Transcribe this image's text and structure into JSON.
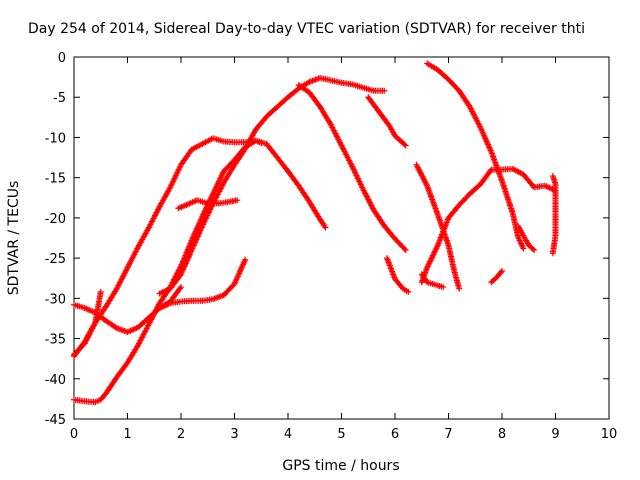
{
  "chart_data": {
    "type": "scatter",
    "title": "Day 254 of 2014, Sidereal Day-to-day VTEC variation (SDTVAR) for receiver thti",
    "xlabel": "GPS time / hours",
    "ylabel": "SDTVAR / TECUs",
    "xlim": [
      0,
      10
    ],
    "ylim": [
      -45,
      0
    ],
    "xticks": [
      0,
      1,
      2,
      3,
      4,
      5,
      6,
      7,
      8,
      9,
      10
    ],
    "yticks": [
      0,
      -5,
      -10,
      -15,
      -20,
      -25,
      -30,
      -35,
      -40,
      -45
    ],
    "grid": false,
    "legend": "none",
    "marker": "+",
    "color": "#ff0000",
    "series": [
      {
        "points": [
          [
            0.0,
            -30.8
          ],
          [
            0.2,
            -31.2
          ],
          [
            0.4,
            -31.8
          ],
          [
            0.6,
            -32.8
          ],
          [
            0.8,
            -33.7
          ],
          [
            1.0,
            -34.2
          ],
          [
            1.2,
            -33.6
          ],
          [
            1.4,
            -32.4
          ],
          [
            1.6,
            -31.2
          ],
          [
            1.8,
            -30.6
          ],
          [
            2.0,
            -30.4
          ],
          [
            2.2,
            -30.3
          ],
          [
            2.4,
            -30.3
          ],
          [
            2.6,
            -30.1
          ],
          [
            2.8,
            -29.6
          ],
          [
            3.0,
            -28.2
          ],
          [
            3.2,
            -25.2
          ]
        ]
      },
      {
        "points": [
          [
            0.0,
            -42.6
          ],
          [
            0.2,
            -42.8
          ],
          [
            0.4,
            -42.9
          ],
          [
            0.5,
            -42.6
          ],
          [
            0.6,
            -41.8
          ],
          [
            0.8,
            -39.8
          ],
          [
            1.0,
            -38.0
          ],
          [
            1.2,
            -35.8
          ],
          [
            1.4,
            -33.2
          ],
          [
            1.6,
            -30.6
          ],
          [
            1.8,
            -28.6
          ],
          [
            2.0,
            -26.0
          ],
          [
            2.2,
            -22.8
          ],
          [
            2.4,
            -19.8
          ],
          [
            2.6,
            -17.0
          ],
          [
            2.8,
            -14.2
          ],
          [
            3.0,
            -12.8
          ],
          [
            3.2,
            -11.2
          ],
          [
            3.4,
            -10.4
          ],
          [
            3.6,
            -10.8
          ],
          [
            3.8,
            -12.5
          ],
          [
            4.0,
            -14.2
          ],
          [
            4.2,
            -16.0
          ],
          [
            4.4,
            -18.0
          ],
          [
            4.6,
            -20.2
          ],
          [
            4.7,
            -21.2
          ]
        ]
      },
      {
        "points": [
          [
            0.0,
            -37.2
          ],
          [
            0.2,
            -35.4
          ],
          [
            0.4,
            -33.0
          ],
          [
            0.6,
            -31.0
          ],
          [
            0.8,
            -28.8
          ],
          [
            1.0,
            -26.2
          ],
          [
            1.2,
            -23.6
          ],
          [
            1.4,
            -21.2
          ],
          [
            1.6,
            -18.6
          ],
          [
            1.8,
            -16.2
          ],
          [
            2.0,
            -13.4
          ],
          [
            2.2,
            -11.5
          ],
          [
            2.4,
            -10.8
          ],
          [
            2.6,
            -10.1
          ],
          [
            2.8,
            -10.5
          ],
          [
            3.0,
            -10.6
          ],
          [
            3.2,
            -10.6
          ],
          [
            3.4,
            -10.4
          ],
          [
            3.5,
            -10.7
          ]
        ]
      },
      {
        "points": [
          [
            0.0,
            -37.0
          ],
          [
            0.2,
            -35.6
          ],
          [
            0.4,
            -33.0
          ],
          [
            0.5,
            -29.2
          ]
        ]
      },
      {
        "points": [
          [
            1.6,
            -29.4
          ],
          [
            1.8,
            -28.8
          ],
          [
            2.0,
            -27.0
          ],
          [
            2.2,
            -24.0
          ],
          [
            2.4,
            -21.0
          ],
          [
            2.6,
            -18.2
          ],
          [
            2.8,
            -15.6
          ],
          [
            3.0,
            -13.4
          ],
          [
            3.2,
            -11.4
          ],
          [
            3.4,
            -9.0
          ],
          [
            3.6,
            -7.4
          ],
          [
            3.8,
            -6.2
          ],
          [
            4.0,
            -5.0
          ],
          [
            4.2,
            -3.9
          ],
          [
            4.4,
            -3.1
          ],
          [
            4.6,
            -2.6
          ],
          [
            4.8,
            -2.9
          ],
          [
            5.0,
            -3.2
          ],
          [
            5.2,
            -3.4
          ],
          [
            5.4,
            -3.8
          ],
          [
            5.6,
            -4.2
          ],
          [
            5.8,
            -4.2
          ]
        ]
      },
      {
        "points": [
          [
            1.6,
            -31.2
          ],
          [
            1.8,
            -30.4
          ],
          [
            2.0,
            -28.6
          ]
        ]
      },
      {
        "points": [
          [
            1.95,
            -18.8
          ],
          [
            2.1,
            -18.4
          ],
          [
            2.3,
            -17.8
          ],
          [
            2.5,
            -18.2
          ],
          [
            2.7,
            -18.2
          ],
          [
            2.9,
            -18.0
          ],
          [
            3.05,
            -17.8
          ]
        ]
      },
      {
        "points": [
          [
            4.2,
            -3.5
          ],
          [
            4.4,
            -4.4
          ],
          [
            4.6,
            -6.2
          ],
          [
            4.8,
            -8.4
          ],
          [
            5.0,
            -11.0
          ],
          [
            5.2,
            -13.6
          ],
          [
            5.4,
            -16.4
          ],
          [
            5.6,
            -19.0
          ],
          [
            5.8,
            -21.0
          ],
          [
            6.0,
            -22.6
          ],
          [
            6.2,
            -24.0
          ]
        ]
      },
      {
        "points": [
          [
            5.5,
            -5.0
          ],
          [
            5.7,
            -6.8
          ],
          [
            5.9,
            -8.6
          ],
          [
            6.0,
            -9.8
          ],
          [
            6.2,
            -11.0
          ]
        ]
      },
      {
        "points": [
          [
            5.85,
            -25.0
          ],
          [
            6.0,
            -27.6
          ],
          [
            6.15,
            -28.8
          ],
          [
            6.25,
            -29.2
          ]
        ]
      },
      {
        "points": [
          [
            6.4,
            -13.4
          ],
          [
            6.6,
            -16.0
          ],
          [
            6.8,
            -19.6
          ],
          [
            7.0,
            -23.4
          ],
          [
            7.1,
            -26.4
          ],
          [
            7.2,
            -28.8
          ]
        ]
      },
      {
        "points": [
          [
            6.5,
            -27.0
          ],
          [
            6.6,
            -28.0
          ],
          [
            6.8,
            -28.4
          ],
          [
            6.9,
            -28.6
          ]
        ]
      },
      {
        "points": [
          [
            6.5,
            -28.0
          ],
          [
            6.6,
            -26.2
          ],
          [
            6.8,
            -23.4
          ],
          [
            7.0,
            -20.0
          ],
          [
            7.2,
            -18.4
          ],
          [
            7.4,
            -17.0
          ],
          [
            7.6,
            -15.8
          ],
          [
            7.8,
            -14.0
          ],
          [
            8.0,
            -14.0
          ],
          [
            8.2,
            -13.9
          ],
          [
            8.4,
            -14.6
          ],
          [
            8.6,
            -16.2
          ],
          [
            8.8,
            -16.0
          ],
          [
            9.0,
            -16.6
          ]
        ]
      },
      {
        "points": [
          [
            6.6,
            -0.8
          ],
          [
            6.8,
            -1.6
          ],
          [
            7.0,
            -2.8
          ],
          [
            7.2,
            -4.2
          ],
          [
            7.4,
            -6.2
          ],
          [
            7.6,
            -8.8
          ],
          [
            7.8,
            -11.8
          ],
          [
            8.0,
            -15.4
          ],
          [
            8.2,
            -19.4
          ],
          [
            8.3,
            -22.4
          ],
          [
            8.4,
            -23.8
          ]
        ]
      },
      {
        "points": [
          [
            7.8,
            -28.0
          ],
          [
            7.9,
            -27.4
          ],
          [
            8.0,
            -26.6
          ]
        ]
      },
      {
        "points": [
          [
            8.3,
            -21.0
          ],
          [
            8.4,
            -22.2
          ],
          [
            8.5,
            -23.4
          ],
          [
            8.6,
            -24.0
          ]
        ]
      },
      {
        "points": [
          [
            8.95,
            -24.4
          ],
          [
            9.0,
            -22.2
          ],
          [
            9.0,
            -20.4
          ],
          [
            9.0,
            -18.6
          ],
          [
            9.0,
            -17.4
          ],
          [
            9.0,
            -15.8
          ],
          [
            8.95,
            -14.8
          ]
        ]
      }
    ]
  }
}
